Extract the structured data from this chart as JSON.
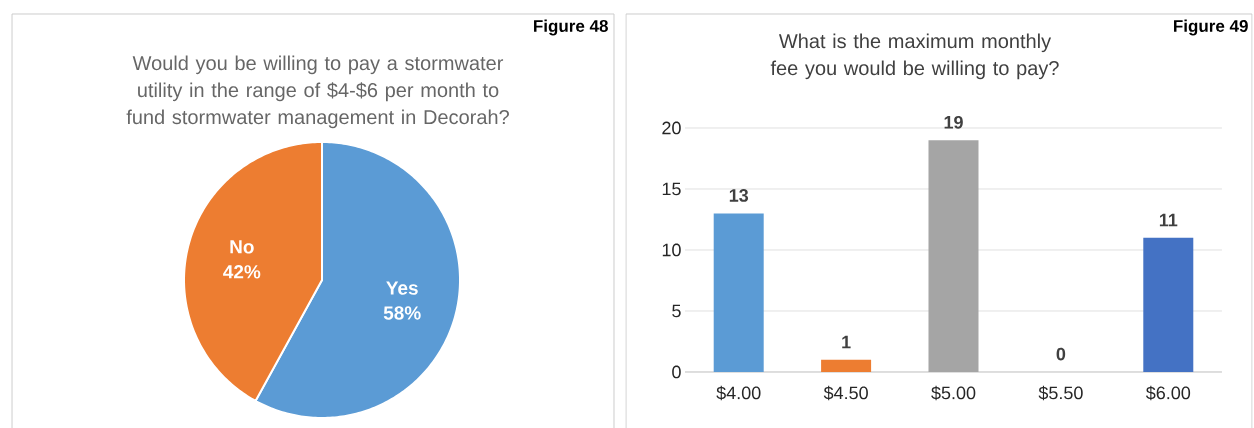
{
  "chart_data": [
    {
      "type": "pie",
      "title": "Would you be willing to pay a stormwater utility in the range of $4-$6 per month to fund stormwater management in Decorah?",
      "categories": [
        "Yes",
        "No"
      ],
      "values": [
        58,
        42
      ],
      "colors": [
        "#5b9bd5",
        "#ed7d31"
      ],
      "value_labels": [
        "58%",
        "42%"
      ],
      "annotations": [
        "Figure 48"
      ]
    },
    {
      "type": "bar",
      "title": "What is the maximum monthly fee you would be willing to pay?",
      "categories": [
        "$4.00",
        "$4.50",
        "$5.00",
        "$5.50",
        "$6.00"
      ],
      "values": [
        13,
        1,
        19,
        0,
        11
      ],
      "colors": [
        "#5b9bd5",
        "#ed7d31",
        "#a5a5a5",
        "#ffc000",
        "#4472c4"
      ],
      "ylim": [
        0,
        20
      ],
      "yticks": [
        0,
        5,
        10,
        15,
        20
      ],
      "grid": "y",
      "data_labels": true,
      "annotations": [
        "Figure 49"
      ]
    }
  ]
}
